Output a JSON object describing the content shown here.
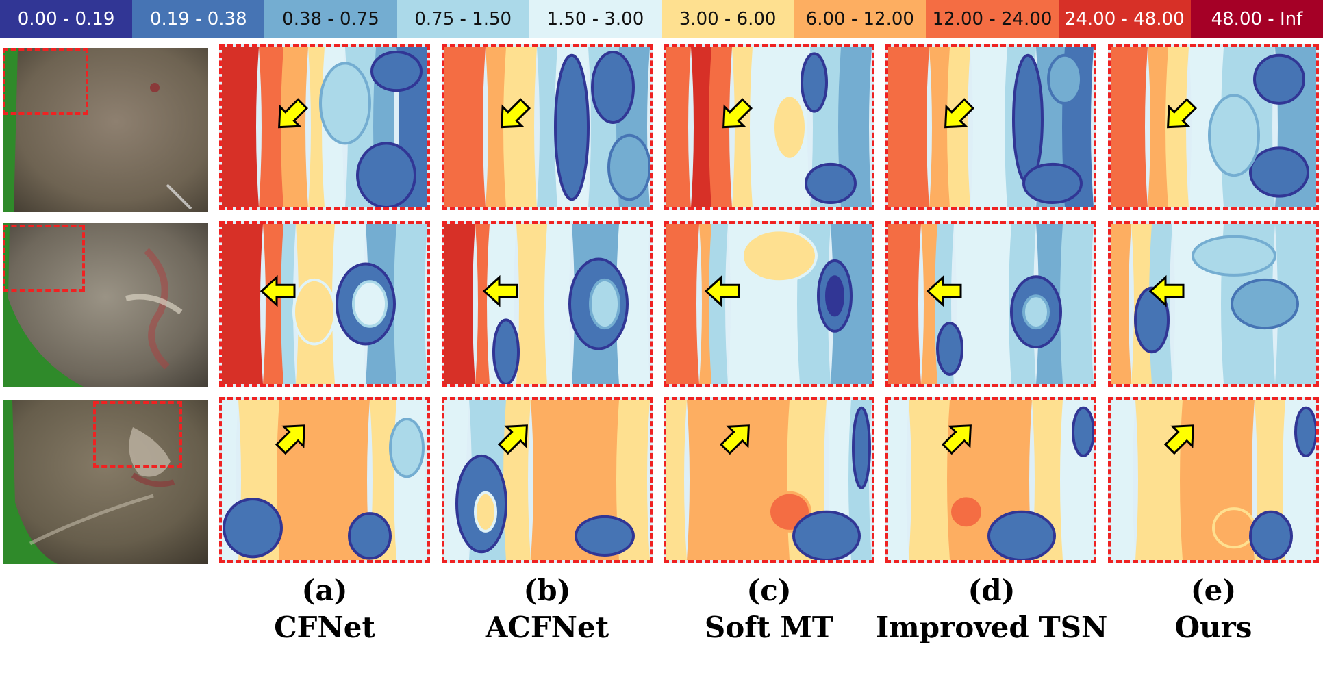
{
  "legend": [
    {
      "label": "0.00 - 0.19",
      "color": "#313695"
    },
    {
      "label": "0.19 - 0.38",
      "color": "#4674b4"
    },
    {
      "label": "0.38 - 0.75",
      "color": "#74add1"
    },
    {
      "label": "0.75 - 1.50",
      "color": "#abd9e9"
    },
    {
      "label": "1.50 - 3.00",
      "color": "#e0f3f8"
    },
    {
      "label": "3.00 - 6.00",
      "color": "#fee090"
    },
    {
      "label": "6.00 - 12.00",
      "color": "#fdae61"
    },
    {
      "label": "12.00 - 24.00",
      "color": "#f46d43"
    },
    {
      "label": "24.00 - 48.00",
      "color": "#d73027"
    },
    {
      "label": "48.00 - Inf",
      "color": "#a50026"
    }
  ],
  "roi_color": "#ef2222",
  "arrow_color": "#ffff00",
  "columns": [
    {
      "letter": "(a)",
      "method": "CFNet"
    },
    {
      "letter": "(b)",
      "method": "ACFNet"
    },
    {
      "letter": "(c)",
      "method": "Soft MT"
    },
    {
      "letter": "(d)",
      "method": "Improved TSN"
    },
    {
      "letter": "(e)",
      "method": "Ours"
    }
  ],
  "arrow_directions": [
    "down-left",
    "left",
    "up-right"
  ]
}
